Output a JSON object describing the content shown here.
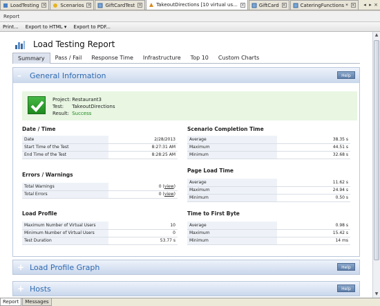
{
  "window_tabs": [
    {
      "label": "LoadTesting",
      "icon": "project-icon",
      "active": false
    },
    {
      "label": "Scenarios",
      "icon": "scenarios-icon",
      "active": false
    },
    {
      "label": "GiftCardTest",
      "icon": "test-icon",
      "active": false
    },
    {
      "label": "TakeoutDirections [10 virtual us...",
      "icon": "report-icon",
      "active": true
    },
    {
      "label": "GiftCard",
      "icon": "test-icon",
      "active": false
    },
    {
      "label": "CateringFunctions *",
      "icon": "test-icon",
      "active": false
    }
  ],
  "doc_label": "Report",
  "toolbar": {
    "print": "Print...",
    "export_html": "Export to HTML",
    "export_pdf": "Export to PDF..."
  },
  "report": {
    "title": "Load Testing Report",
    "tabs": [
      "Summary",
      "Pass / Fail",
      "Response Time",
      "Infrastructure",
      "Top 10",
      "Custom Charts"
    ],
    "help_label": "Help",
    "general": {
      "title": "General Information",
      "project_label": "Project:",
      "project": "Restaurant3",
      "test_label": "Test:",
      "test": "TakeoutDirections",
      "result_label": "Result:",
      "result": "Success"
    },
    "datetime": {
      "title": "Date / Time",
      "rows": [
        {
          "k": "Date",
          "v": "2/28/2013"
        },
        {
          "k": "Start Time of the Test",
          "v": "8:27:31 AM"
        },
        {
          "k": "End Time of the Test",
          "v": "8:28:25 AM"
        }
      ]
    },
    "errors": {
      "title": "Errors / Warnings",
      "rows": [
        {
          "k": "Total Warnings",
          "v": "0",
          "link": "view"
        },
        {
          "k": "Total Errors",
          "v": "0",
          "link": "view"
        }
      ]
    },
    "load_profile": {
      "title": "Load Profile",
      "rows": [
        {
          "k": "Maximum Number of Virtual Users",
          "v": "10"
        },
        {
          "k": "Minimum Number of Virtual Users",
          "v": "0"
        },
        {
          "k": "Test Duration",
          "v": "53.77 s"
        }
      ]
    },
    "scenario": {
      "title": "Scenario Completion Time",
      "rows": [
        {
          "k": "Average",
          "v": "38.35 s"
        },
        {
          "k": "Maximum",
          "v": "44.51 s"
        },
        {
          "k": "Minimum",
          "v": "32.68 s"
        }
      ]
    },
    "page_load": {
      "title": "Page Load Time",
      "rows": [
        {
          "k": "Average",
          "v": "11.62 s"
        },
        {
          "k": "Maximum",
          "v": "24.94 s"
        },
        {
          "k": "Minimum",
          "v": "0.50 s"
        }
      ]
    },
    "first_byte": {
      "title": "Time to First Byte",
      "rows": [
        {
          "k": "Average",
          "v": "0.98 s"
        },
        {
          "k": "Maximum",
          "v": "15.42 s"
        },
        {
          "k": "Minimum",
          "v": "14 ms"
        }
      ]
    },
    "load_profile_graph": {
      "title": "Load Profile Graph"
    },
    "hosts": {
      "title": "Hosts"
    }
  },
  "bottom_tabs": [
    "Report",
    "Messages"
  ]
}
